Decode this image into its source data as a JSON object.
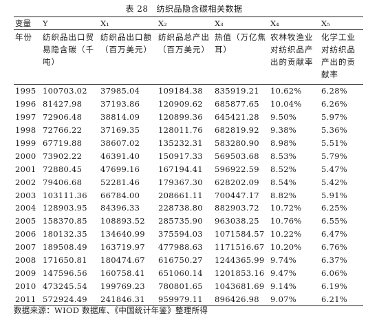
{
  "caption": {
    "number": "表 28",
    "title": "纺织品隐含碳相关数据"
  },
  "columns": [
    {
      "symbol": "变量",
      "desc": "年份"
    },
    {
      "symbol": "Y",
      "desc": "纺织品出口贸易隐含碳（千吨）"
    },
    {
      "symbol": "X₁",
      "desc": "纺织品出口额（百万美元）"
    },
    {
      "symbol": "X₂",
      "desc": "纺织品总产出（百万美元）"
    },
    {
      "symbol": "X₃",
      "desc": "热值（万亿焦耳）"
    },
    {
      "symbol": "X₄",
      "desc": "农林牧渔业对纺织品产出的贡献率"
    },
    {
      "symbol": "X₅",
      "desc": "化学工业对纺织品产出的贡献率"
    }
  ],
  "rows": [
    [
      "1995",
      "100703.02",
      "37985.04",
      "109184.38",
      "835919.21",
      "10.62%",
      "6.28%"
    ],
    [
      "1996",
      "81427.98",
      "37193.86",
      "120909.62",
      "685877.65",
      "10.04%",
      "6.26%"
    ],
    [
      "1997",
      "72906.48",
      "38814.09",
      "120899.36",
      "645421.28",
      "9.50%",
      "5.97%"
    ],
    [
      "1998",
      "72766.22",
      "37169.35",
      "128011.76",
      "682819.92",
      "9.38%",
      "5.36%"
    ],
    [
      "1999",
      "67719.88",
      "38607.02",
      "135232.31",
      "583280.90",
      "8.98%",
      "5.51%"
    ],
    [
      "2000",
      "73902.22",
      "46391.40",
      "150917.33",
      "569503.68",
      "8.53%",
      "5.79%"
    ],
    [
      "2001",
      "72880.45",
      "47699.16",
      "167194.41",
      "596922.59",
      "8.52%",
      "5.47%"
    ],
    [
      "2002",
      "79406.68",
      "52281.46",
      "179367.30",
      "628202.09",
      "8.54%",
      "5.42%"
    ],
    [
      "2003",
      "103111.36",
      "66784.00",
      "208661.11",
      "700447.17",
      "8.82%",
      "5.91%"
    ],
    [
      "2004",
      "128903.95",
      "84396.33",
      "228738.80",
      "882903.72",
      "10.72%",
      "6.25%"
    ],
    [
      "2005",
      "158370.85",
      "108893.52",
      "285735.90",
      "963038.25",
      "10.76%",
      "6.55%"
    ],
    [
      "2006",
      "180132.35",
      "134640.99",
      "375594.03",
      "1071584.57",
      "10.22%",
      "6.47%"
    ],
    [
      "2007",
      "189508.49",
      "163719.97",
      "477988.63",
      "1171516.67",
      "10.20%",
      "6.76%"
    ],
    [
      "2008",
      "171650.81",
      "180474.67",
      "616750.27",
      "1244365.99",
      "9.74%",
      "6.37%"
    ],
    [
      "2009",
      "147596.56",
      "160758.41",
      "651060.14",
      "1201853.16",
      "9.47%",
      "6.06%"
    ],
    [
      "2010",
      "473245.54",
      "199769.23",
      "780801.65",
      "1043681.69",
      "9.14%",
      "6.19%"
    ],
    [
      "2011",
      "572924.49",
      "241846.31",
      "959979.11",
      "896426.98",
      "9.07%",
      "6.21%"
    ]
  ],
  "note": "数据来源：WIOD 数据库、《中国统计年鉴》整理所得"
}
